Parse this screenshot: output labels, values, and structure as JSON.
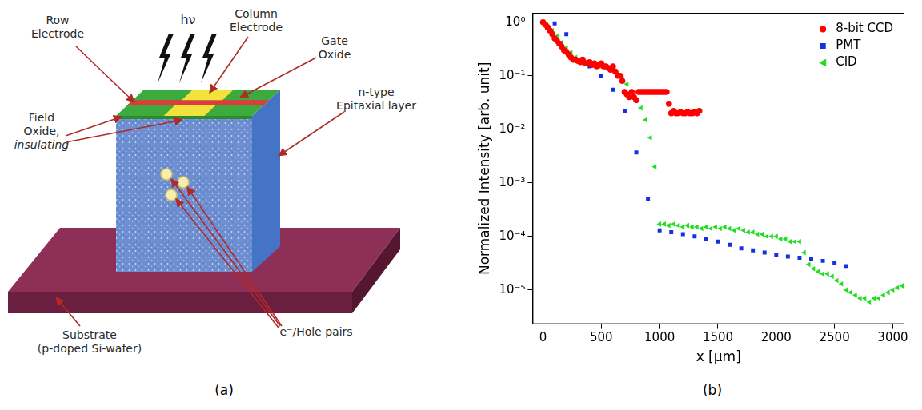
{
  "diagram": {
    "caption": "(a)",
    "labels": {
      "row_electrode": [
        "Row",
        "Electrode"
      ],
      "column_electrode": [
        "Column",
        "Electrode"
      ],
      "photon": [
        "hν"
      ],
      "gate_oxide": [
        "Gate",
        "Oxide"
      ],
      "epitaxial": [
        "n-type",
        "Epitaxial layer"
      ],
      "field_oxide": [
        "Field",
        "Oxide,",
        "insulating"
      ],
      "substrate": [
        "Substrate",
        "(p-doped Si-wafer)"
      ],
      "pairs": [
        "e⁻/Hole pairs"
      ]
    }
  },
  "chart_data": {
    "type": "scatter",
    "caption": "(b)",
    "x_label": "x [μm]",
    "y_label": "Normalized Intensity [arb. unit]",
    "log": "y",
    "grid": false,
    "legend": "upper right",
    "xlim": [
      -90,
      3100
    ],
    "xticks": [
      0,
      500,
      1000,
      1500,
      2000,
      2500,
      3000
    ],
    "ylim": [
      2.3e-06,
      1.5
    ],
    "yticks": [
      {
        "value": 1e-05,
        "label": "10⁻⁵"
      },
      {
        "value": 0.0001,
        "label": "10⁻⁴"
      },
      {
        "value": 0.001,
        "label": "10⁻³"
      },
      {
        "value": 0.01,
        "label": "10⁻²"
      },
      {
        "value": 0.1,
        "label": "10⁻¹"
      },
      {
        "value": 1,
        "label": "10⁰"
      }
    ],
    "series": [
      {
        "name": "8-bit CCD",
        "color": "#ff0000",
        "marker": "circle",
        "x": [
          0,
          20,
          40,
          60,
          80,
          100,
          120,
          140,
          160,
          180,
          200,
          220,
          240,
          260,
          280,
          300,
          320,
          340,
          360,
          380,
          400,
          420,
          440,
          460,
          480,
          500,
          520,
          540,
          560,
          580,
          600,
          620,
          640,
          660,
          680,
          700,
          720,
          740,
          760,
          780,
          800,
          820,
          840,
          860,
          880,
          900,
          920,
          940,
          960,
          980,
          1000,
          1020,
          1040,
          1060,
          1080,
          1100,
          1120,
          1140,
          1160,
          1180,
          1200,
          1220,
          1240,
          1260,
          1280,
          1300,
          1320,
          1340
        ],
        "values": [
          1.0,
          0.9,
          0.8,
          0.7,
          0.6,
          0.5,
          0.45,
          0.4,
          0.35,
          0.3,
          0.28,
          0.25,
          0.22,
          0.2,
          0.2,
          0.19,
          0.18,
          0.2,
          0.17,
          0.17,
          0.18,
          0.16,
          0.17,
          0.15,
          0.16,
          0.17,
          0.15,
          0.15,
          0.14,
          0.13,
          0.15,
          0.12,
          0.1,
          0.1,
          0.08,
          0.05,
          0.045,
          0.04,
          0.05,
          0.04,
          0.035,
          0.05,
          0.05,
          0.05,
          0.05,
          0.05,
          0.05,
          0.05,
          0.05,
          0.05,
          0.05,
          0.05,
          0.05,
          0.05,
          0.03,
          0.02,
          0.022,
          0.02,
          0.02,
          0.021,
          0.02,
          0.02,
          0.021,
          0.02,
          0.02,
          0.021,
          0.02,
          0.022
        ]
      },
      {
        "name": "PMT",
        "color": "#1530e0",
        "marker": "square",
        "x": [
          0,
          100,
          200,
          300,
          400,
          500,
          600,
          700,
          800,
          900,
          1000,
          1100,
          1200,
          1300,
          1400,
          1500,
          1600,
          1700,
          1800,
          1900,
          2000,
          2100,
          2200,
          2300,
          2400,
          2500,
          2600
        ],
        "values": [
          1.0,
          0.95,
          0.6,
          0.2,
          0.15,
          0.1,
          0.055,
          0.022,
          0.0037,
          0.0005,
          0.00013,
          0.00012,
          0.00011,
          0.0001,
          9e-05,
          8e-05,
          7e-05,
          6e-05,
          5.5e-05,
          5e-05,
          4.5e-05,
          4.2e-05,
          4e-05,
          3.8e-05,
          3.5e-05,
          3.2e-05,
          2.8e-05
        ]
      },
      {
        "name": "CID",
        "color": "#22dd22",
        "marker": "triangle-left",
        "x": [
          0,
          40,
          80,
          120,
          160,
          200,
          240,
          280,
          320,
          360,
          400,
          440,
          480,
          520,
          560,
          600,
          640,
          680,
          720,
          760,
          800,
          840,
          880,
          920,
          960,
          1000,
          1040,
          1080,
          1120,
          1160,
          1200,
          1240,
          1280,
          1320,
          1360,
          1400,
          1440,
          1480,
          1520,
          1560,
          1600,
          1640,
          1680,
          1720,
          1760,
          1800,
          1840,
          1880,
          1920,
          1960,
          2000,
          2040,
          2080,
          2120,
          2160,
          2200,
          2240,
          2280,
          2320,
          2360,
          2400,
          2440,
          2480,
          2520,
          2560,
          2600,
          2640,
          2680,
          2720,
          2760,
          2800,
          2840,
          2880,
          2920,
          2960,
          3000,
          3040,
          3080
        ],
        "values": [
          1.0,
          0.85,
          0.7,
          0.55,
          0.42,
          0.33,
          0.27,
          0.22,
          0.2,
          0.18,
          0.17,
          0.16,
          0.15,
          0.15,
          0.14,
          0.13,
          0.11,
          0.09,
          0.07,
          0.05,
          0.035,
          0.025,
          0.015,
          0.007,
          0.002,
          0.00017,
          0.00017,
          0.00016,
          0.00017,
          0.00016,
          0.00015,
          0.00016,
          0.00015,
          0.00015,
          0.00014,
          0.00015,
          0.00014,
          0.00015,
          0.00014,
          0.00015,
          0.00014,
          0.00013,
          0.00014,
          0.00013,
          0.00012,
          0.00012,
          0.00011,
          0.00011,
          0.0001,
          0.0001,
          0.0001,
          9e-05,
          9e-05,
          8e-05,
          8e-05,
          8e-05,
          5e-05,
          3e-05,
          2.5e-05,
          2.2e-05,
          2e-05,
          2e-05,
          1.8e-05,
          1.5e-05,
          1.3e-05,
          1e-05,
          9e-06,
          8e-06,
          7e-06,
          7e-06,
          6e-06,
          7e-06,
          7e-06,
          8e-06,
          9e-06,
          1e-05,
          1.1e-05,
          1.2e-05
        ]
      }
    ]
  }
}
